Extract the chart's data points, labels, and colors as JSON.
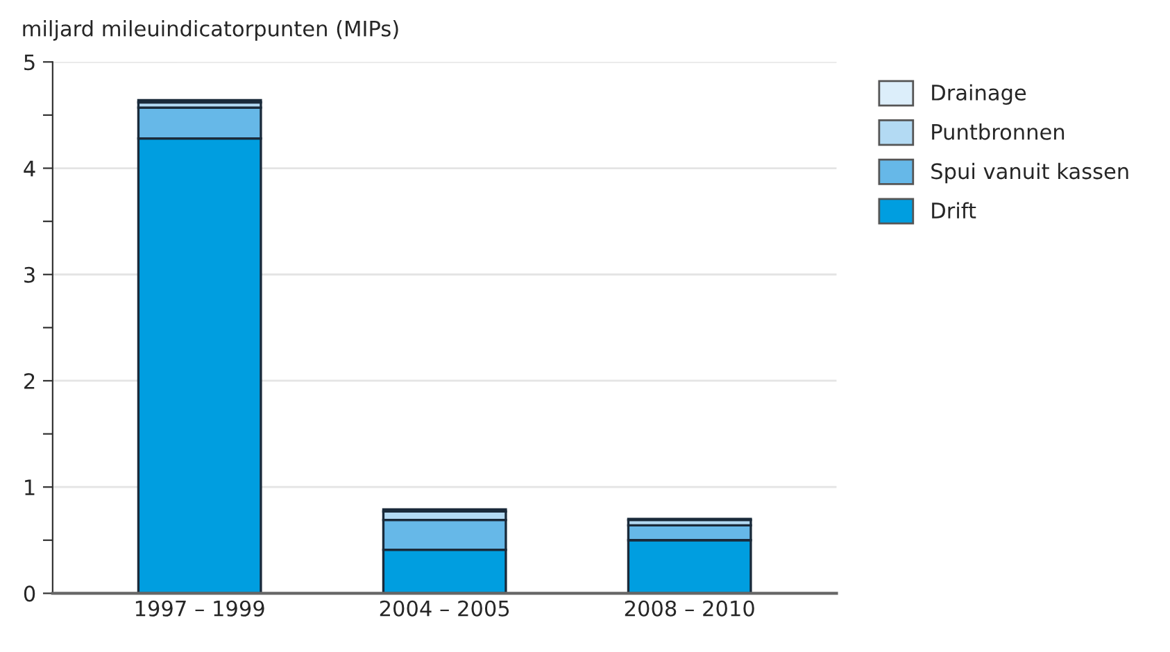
{
  "chart_data": {
    "type": "bar",
    "stacked": true,
    "ylabel": "miljard mileuindicatorpunten (MIPs)",
    "categories": [
      "1997 – 1999",
      "2004 – 2005",
      "2008 – 2010"
    ],
    "series": [
      {
        "name": "Drift",
        "color": "#009ee0",
        "values": [
          4.28,
          0.41,
          0.5
        ]
      },
      {
        "name": "Spui vanuit kassen",
        "color": "#66b8e8",
        "values": [
          0.29,
          0.28,
          0.14
        ]
      },
      {
        "name": "Puntbronnen",
        "color": "#b3daf3",
        "values": [
          0.05,
          0.08,
          0.05
        ]
      },
      {
        "name": "Drainage",
        "color": "#dceefa",
        "values": [
          0.02,
          0.02,
          0.01
        ]
      }
    ],
    "ylim": [
      0,
      5
    ],
    "yticks": [
      0,
      {
        "value": 0.5,
        "label": null
      },
      1,
      {
        "value": 1.5,
        "label": null
      },
      2,
      {
        "value": 2.5,
        "label": null
      },
      3,
      {
        "value": 3.5,
        "label": null
      },
      4,
      {
        "value": 4.5,
        "label": null
      },
      5
    ],
    "grid": "y",
    "legend": "right"
  }
}
